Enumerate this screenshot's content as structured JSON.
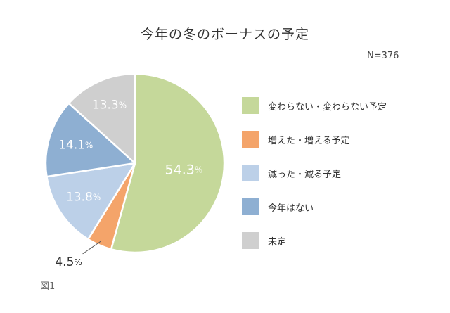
{
  "chart_data": {
    "type": "pie",
    "title": "今年の冬のボーナスの予定",
    "sample_size_label": "N=376",
    "figure_label": "図1",
    "start_angle_deg": 0,
    "direction": "clockwise",
    "legend_position": "right",
    "slices": [
      {
        "name": "変わらない・変わらない予定",
        "value": 54.3,
        "label": "54.3",
        "color": "#c5d89a",
        "label_color": "#ffffff"
      },
      {
        "name": "増えた・増える予定",
        "value": 4.5,
        "label": "4.5",
        "color": "#f4a46a",
        "label_color": "#333333"
      },
      {
        "name": "減った・減る予定",
        "value": 13.8,
        "label": "13.8",
        "color": "#bcd0e8",
        "label_color": "#ffffff"
      },
      {
        "name": "今年はない",
        "value": 14.1,
        "label": "14.1",
        "color": "#8eafd2",
        "label_color": "#ffffff"
      },
      {
        "name": "未定",
        "value": 13.3,
        "label": "13.3",
        "color": "#cfcfcf",
        "label_color": "#ffffff"
      }
    ],
    "percent_sign": "%"
  }
}
